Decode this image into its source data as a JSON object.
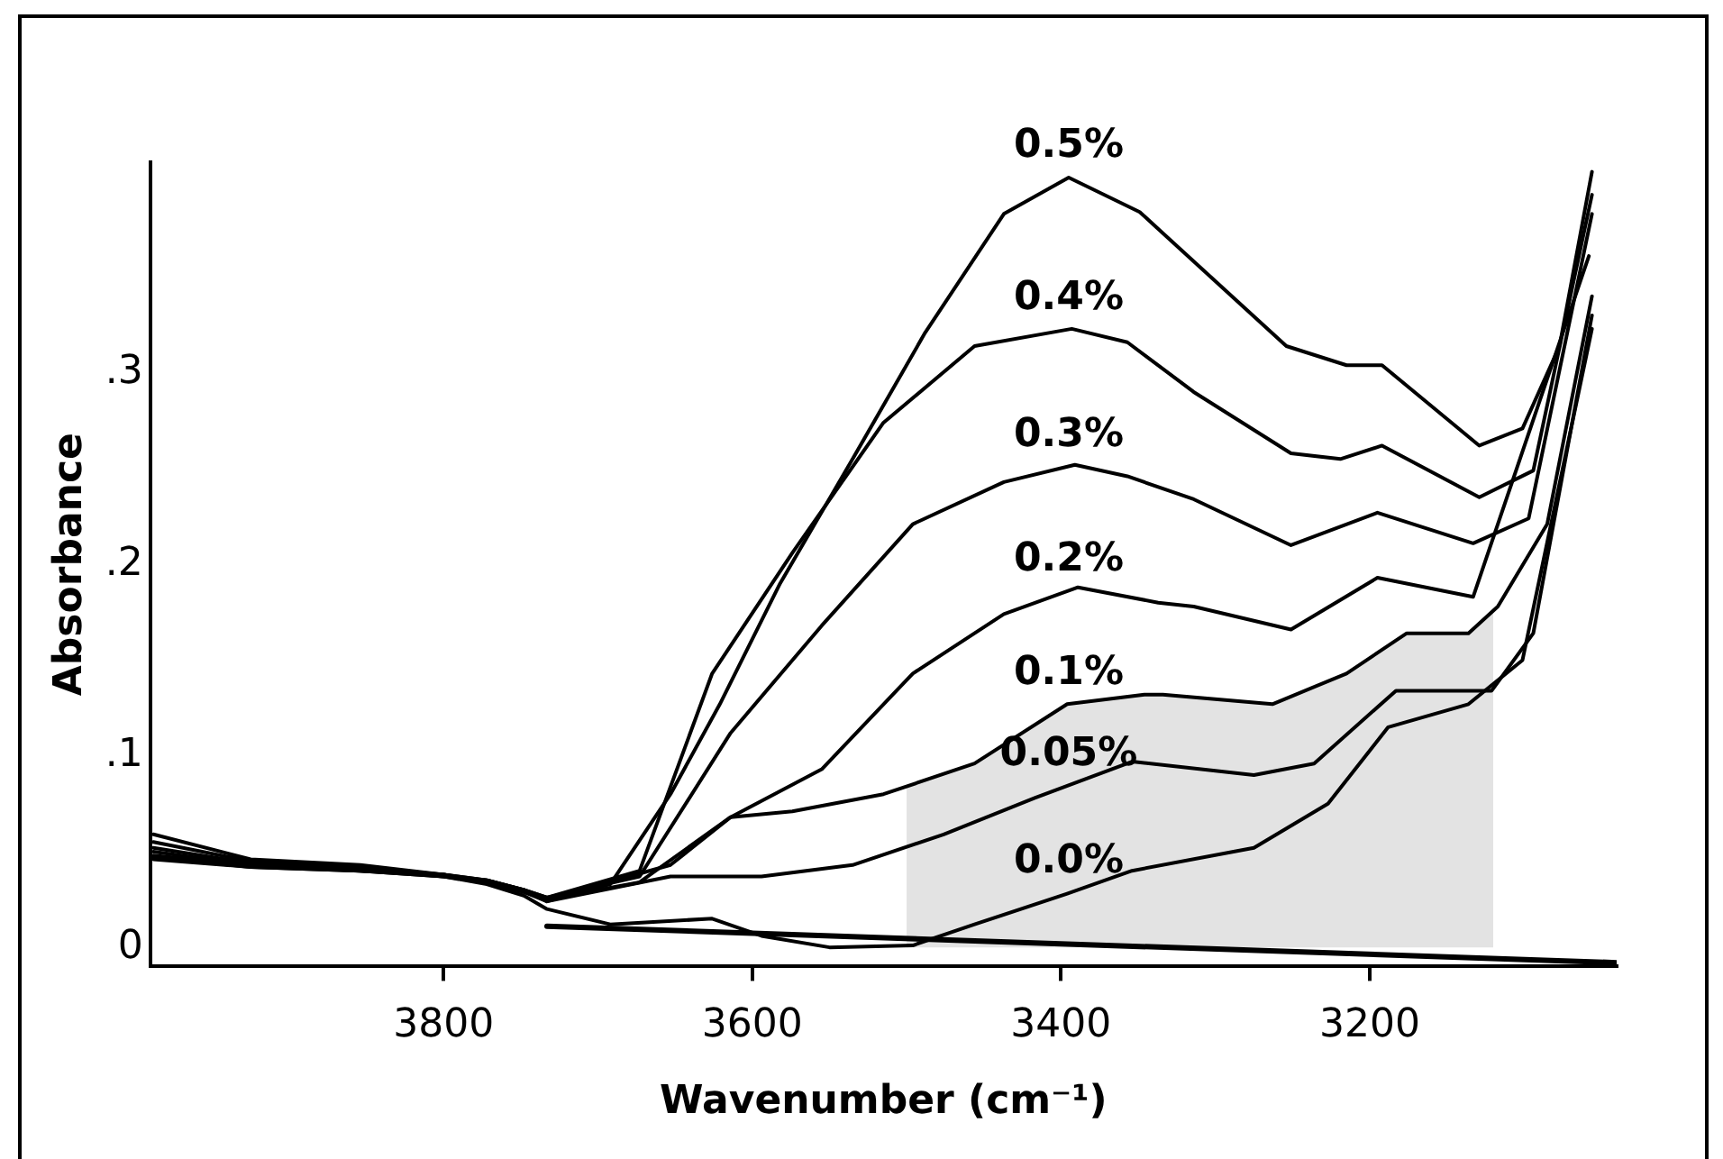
{
  "chart_data": {
    "type": "line",
    "xlabel": "Wavenumber (cm⁻¹)",
    "ylabel": "Absorbance",
    "xlim": [
      3990,
      3040
    ],
    "xticks": [
      3800,
      3600,
      3400,
      3200
    ],
    "ylim": [
      -0.01,
      0.41
    ],
    "yticks": [
      {
        "value": 0,
        "label": "0"
      },
      {
        "value": 0.1,
        "label": ".1"
      },
      {
        "value": 0.2,
        "label": ".2"
      },
      {
        "value": 0.3,
        "label": ".3"
      }
    ],
    "grid": false,
    "legend": false,
    "marker": "none",
    "line_style": "solid",
    "series": [
      {
        "name": "0.5%",
        "color": "#000000",
        "x": [
          3988,
          3925,
          3854,
          3800,
          3772,
          3748,
          3733,
          3692,
          3653,
          3621,
          3582,
          3535,
          3488,
          3437,
          3395,
          3349,
          3254,
          3215,
          3192,
          3129,
          3101,
          3077,
          3056
        ],
        "values": [
          0.059,
          0.046,
          0.043,
          0.038,
          0.035,
          0.03,
          0.024,
          0.033,
          0.08,
          0.127,
          0.19,
          0.255,
          0.321,
          0.383,
          0.402,
          0.384,
          0.314,
          0.304,
          0.304,
          0.262,
          0.271,
          0.314,
          0.405
        ]
      },
      {
        "name": "0.4%",
        "color": "#000000",
        "x": [
          3988,
          3925,
          3854,
          3800,
          3772,
          3748,
          3733,
          3673,
          3626,
          3574,
          3515,
          3456,
          3393,
          3357,
          3314,
          3251,
          3219,
          3192,
          3129,
          3094,
          3056
        ],
        "values": [
          0.055,
          0.045,
          0.042,
          0.038,
          0.035,
          0.03,
          0.026,
          0.04,
          0.143,
          0.206,
          0.274,
          0.314,
          0.323,
          0.316,
          0.29,
          0.258,
          0.255,
          0.262,
          0.235,
          0.249,
          0.393
        ]
      },
      {
        "name": "0.3%",
        "color": "#000000",
        "x": [
          3988,
          3925,
          3854,
          3800,
          3772,
          3748,
          3733,
          3673,
          3614,
          3555,
          3496,
          3437,
          3391,
          3357,
          3314,
          3251,
          3195,
          3133,
          3097,
          3056
        ],
        "values": [
          0.052,
          0.044,
          0.041,
          0.037,
          0.035,
          0.03,
          0.026,
          0.037,
          0.112,
          0.168,
          0.221,
          0.243,
          0.252,
          0.246,
          0.234,
          0.21,
          0.227,
          0.211,
          0.224,
          0.383
        ]
      },
      {
        "name": "0.2%",
        "color": "#000000",
        "x": [
          3988,
          3925,
          3854,
          3800,
          3772,
          3748,
          3733,
          3653,
          3614,
          3555,
          3496,
          3437,
          3389,
          3337,
          3314,
          3251,
          3195,
          3133,
          3058
        ],
        "values": [
          0.05,
          0.043,
          0.041,
          0.038,
          0.034,
          0.029,
          0.025,
          0.043,
          0.068,
          0.093,
          0.143,
          0.174,
          0.188,
          0.18,
          0.178,
          0.166,
          0.193,
          0.183,
          0.361
        ]
      },
      {
        "name": "0.1%",
        "color": "#000000",
        "x": [
          3988,
          3925,
          3854,
          3800,
          3772,
          3748,
          3733,
          3673,
          3614,
          3574,
          3515,
          3456,
          3396,
          3346,
          3334,
          3263,
          3215,
          3176,
          3136,
          3117,
          3085,
          3056
        ],
        "values": [
          0.048,
          0.043,
          0.04,
          0.037,
          0.034,
          0.029,
          0.025,
          0.034,
          0.068,
          0.071,
          0.08,
          0.096,
          0.127,
          0.132,
          0.132,
          0.127,
          0.143,
          0.164,
          0.164,
          0.178,
          0.221,
          0.34
        ]
      },
      {
        "name": "0.05%",
        "color": "#000000",
        "x": [
          3988,
          3925,
          3854,
          3800,
          3772,
          3748,
          3733,
          3653,
          3594,
          3535,
          3476,
          3417,
          3354,
          3275,
          3236,
          3183,
          3121,
          3094,
          3056
        ],
        "values": [
          0.047,
          0.042,
          0.04,
          0.038,
          0.034,
          0.029,
          0.024,
          0.037,
          0.037,
          0.043,
          0.059,
          0.078,
          0.097,
          0.09,
          0.096,
          0.134,
          0.134,
          0.164,
          0.33
        ]
      },
      {
        "name": "0.0%",
        "color": "#000000",
        "x": [
          3988,
          3925,
          3854,
          3800,
          3772,
          3748,
          3733,
          3692,
          3626,
          3594,
          3550,
          3496,
          3456,
          3396,
          3354,
          3275,
          3227,
          3188,
          3136,
          3101,
          3056
        ],
        "values": [
          0.046,
          0.042,
          0.04,
          0.037,
          0.033,
          0.027,
          0.02,
          0.012,
          0.015,
          0.006,
          0.0,
          0.001,
          0.012,
          0.028,
          0.04,
          0.052,
          0.075,
          0.115,
          0.127,
          0.15,
          0.323
        ]
      },
      {
        "color": "#000000",
        "x": [
          3733,
          3040
        ],
        "values": [
          0.011,
          -0.008
        ]
      },
      {
        "type": "area",
        "color": "#e3e3e3",
        "x": [
          3500,
          3456,
          3396,
          3346,
          3334,
          3263,
          3215,
          3176,
          3136,
          3120
        ],
        "values": [
          0.084,
          0.096,
          0.127,
          0.132,
          0.132,
          0.127,
          0.143,
          0.164,
          0.164,
          0.175
        ]
      }
    ]
  }
}
